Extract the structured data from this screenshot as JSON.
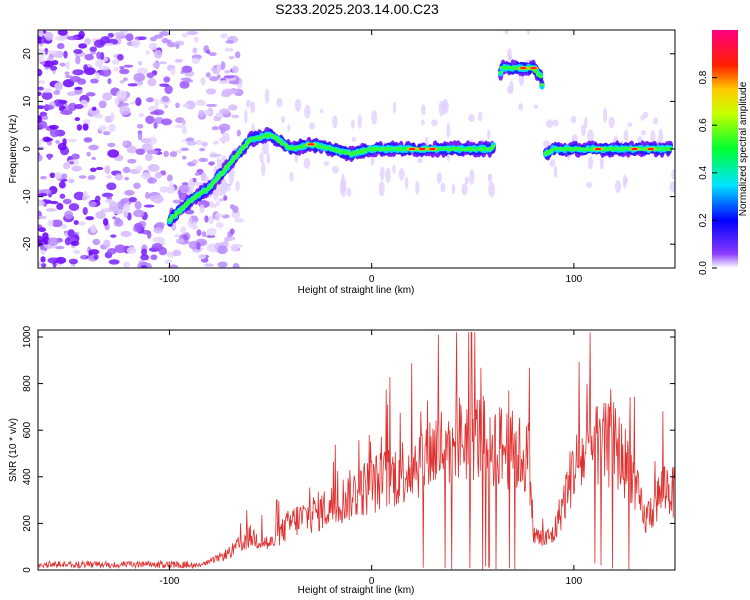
{
  "chart_data": [
    {
      "type": "heatmap",
      "title": "S233.2025.203.14.00.C23",
      "xlabel": "Height of straight line (km)",
      "ylabel": "Frequency (Hz)",
      "xlim": [
        -165,
        150
      ],
      "ylim": [
        -25,
        25
      ],
      "xticks": [
        -100,
        0,
        100
      ],
      "yticks": [
        -20,
        -10,
        0,
        10,
        20
      ],
      "colorbar": {
        "label": "Normalized spectral amplitude",
        "range": [
          0,
          1
        ],
        "ticks": [
          "0.0",
          "0.2",
          "0.4",
          "0.6",
          "0.8"
        ],
        "colors": [
          "#ffffff",
          "#6600ff",
          "#0000ff",
          "#00e5ff",
          "#00ff00",
          "#ffff00",
          "#ff0000",
          "#ff0088"
        ]
      },
      "ridge": {
        "x": [
          -100,
          -90,
          -80,
          -70,
          -60,
          -50,
          -40,
          -30,
          -20,
          -10,
          0,
          10,
          20,
          30,
          40,
          50,
          60,
          64,
          70,
          80,
          84,
          86,
          90,
          100,
          110,
          120,
          130,
          140,
          148
        ],
        "y": [
          -15,
          -11,
          -8,
          -3,
          2,
          3,
          0,
          1,
          0,
          -1,
          0,
          0,
          0,
          0,
          0,
          0,
          0,
          17,
          17,
          17,
          15,
          -1,
          0,
          0,
          0,
          0,
          0,
          0,
          0
        ]
      }
    },
    {
      "type": "line",
      "xlabel": "Height of straight line (km)",
      "ylabel": "SNR (10 * v/v)",
      "xlim": [
        -165,
        150
      ],
      "ylim": [
        0,
        1030
      ],
      "xticks": [
        -100,
        0,
        100
      ],
      "yticks": [
        0,
        200,
        400,
        600,
        800,
        1000
      ],
      "color": "#e03030",
      "envelope": {
        "x": [
          -165,
          -100,
          -85,
          -80,
          -70,
          -60,
          -50,
          -40,
          -30,
          -20,
          -10,
          0,
          10,
          20,
          30,
          40,
          50,
          60,
          70,
          78,
          80,
          85,
          90,
          100,
          110,
          120,
          128,
          135,
          140,
          145,
          150
        ],
        "y": [
          20,
          20,
          25,
          40,
          90,
          170,
          130,
          240,
          280,
          320,
          380,
          430,
          470,
          530,
          600,
          650,
          680,
          640,
          600,
          560,
          180,
          150,
          180,
          520,
          620,
          630,
          500,
          250,
          330,
          430,
          380
        ]
      }
    }
  ]
}
